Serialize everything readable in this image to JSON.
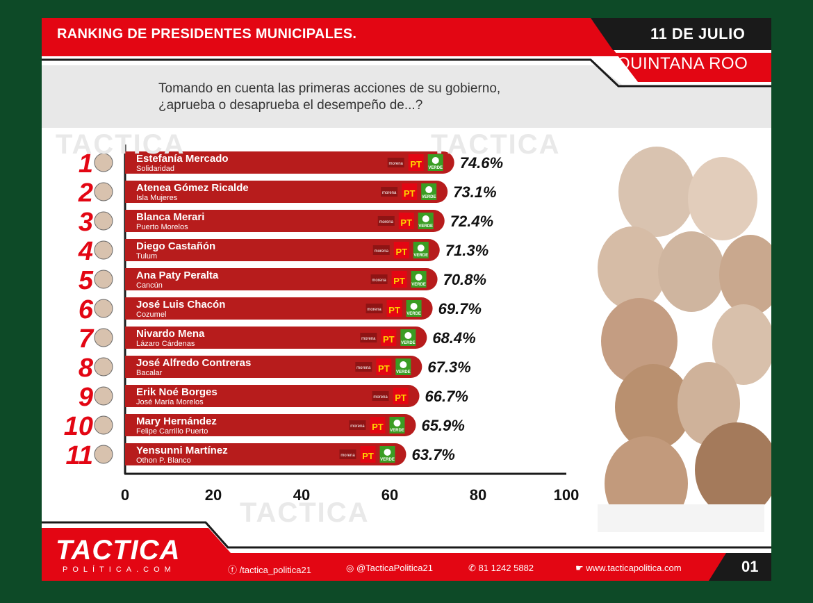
{
  "header": {
    "title": "RANKING DE PRESIDENTES MUNICIPALES.",
    "date": "11 DE JULIO",
    "state": "QUINTANA ROO"
  },
  "question": {
    "line1": "Tomando en cuenta las primeras acciones de su gobierno,",
    "line2": "¿aprueba o desaprueba el desempeño de...?"
  },
  "brand": {
    "name": "TACTICA",
    "sub": "POLÍTICA.COM"
  },
  "party_labels": {
    "morena": "morena",
    "pt": "PT",
    "verde": "VERDE"
  },
  "colors": {
    "bar": "#b71c1c",
    "accent": "#e30613",
    "pt": "#e30613",
    "pt_text": "#ffd400",
    "verde": "#3a9d23"
  },
  "chart_data": {
    "type": "bar",
    "orientation": "horizontal",
    "xlim": [
      0,
      100
    ],
    "xticks": [
      0,
      20,
      40,
      60,
      80,
      100
    ],
    "rows": [
      {
        "rank": "1",
        "name": "Estefanía Mercado",
        "municipality": "Solidaridad",
        "value": 74.6,
        "label": "74.6%",
        "parties": [
          "morena",
          "pt",
          "verde"
        ]
      },
      {
        "rank": "2",
        "name": "Atenea Gómez Ricalde",
        "municipality": "Isla Mujeres",
        "value": 73.1,
        "label": "73.1%",
        "parties": [
          "morena",
          "pt",
          "verde"
        ]
      },
      {
        "rank": "3",
        "name": "Blanca Merari",
        "municipality": "Puerto Morelos",
        "value": 72.4,
        "label": "72.4%",
        "parties": [
          "morena",
          "pt",
          "verde"
        ]
      },
      {
        "rank": "4",
        "name": "Diego Castañón",
        "municipality": "Tulum",
        "value": 71.3,
        "label": "71.3%",
        "parties": [
          "morena",
          "pt",
          "verde"
        ]
      },
      {
        "rank": "5",
        "name": "Ana Paty Peralta",
        "municipality": "Cancún",
        "value": 70.8,
        "label": "70.8%",
        "parties": [
          "morena",
          "pt",
          "verde"
        ]
      },
      {
        "rank": "6",
        "name": "José Luis Chacón",
        "municipality": "Cozumel",
        "value": 69.7,
        "label": "69.7%",
        "parties": [
          "morena",
          "pt",
          "verde"
        ]
      },
      {
        "rank": "7",
        "name": "Nivardo Mena",
        "municipality": "Lázaro Cárdenas",
        "value": 68.4,
        "label": "68.4%",
        "parties": [
          "morena",
          "pt",
          "verde"
        ]
      },
      {
        "rank": "8",
        "name": "José Alfredo Contreras",
        "municipality": "Bacalar",
        "value": 67.3,
        "label": "67.3%",
        "parties": [
          "morena",
          "pt",
          "verde"
        ]
      },
      {
        "rank": "9",
        "name": "Erik Noé Borges",
        "municipality": "José María Morelos",
        "value": 66.7,
        "label": "66.7%",
        "parties": [
          "morena",
          "pt"
        ]
      },
      {
        "rank": "10",
        "name": "Mary Hernández",
        "municipality": "Felipe Carrillo Puerto",
        "value": 65.9,
        "label": "65.9%",
        "parties": [
          "morena",
          "pt",
          "verde"
        ]
      },
      {
        "rank": "11",
        "name": "Yensunni Martínez",
        "municipality": "Othon P. Blanco",
        "value": 63.7,
        "label": "63.7%",
        "parties": [
          "morena",
          "pt",
          "verde"
        ]
      }
    ]
  },
  "footer": {
    "facebook": "/tactica_politica21",
    "instagram": "@TacticaPolitica21",
    "phone": "81 1242 5882",
    "website": "www.tacticapolitica.com",
    "page": "01"
  }
}
